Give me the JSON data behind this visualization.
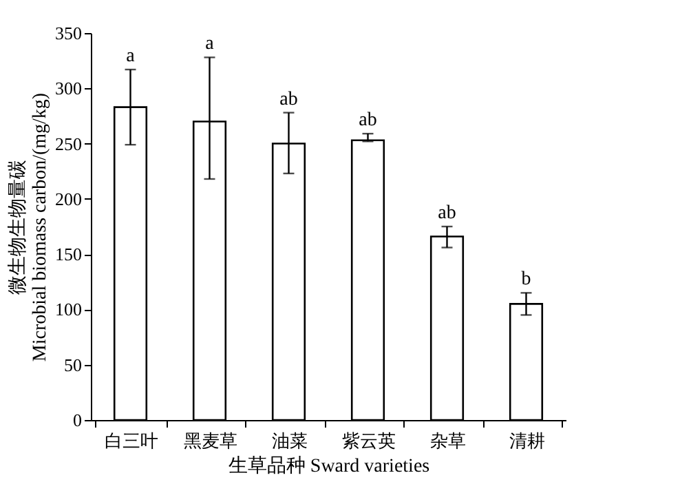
{
  "chart_data": {
    "type": "bar",
    "categories": [
      "白三叶",
      "黑麦草",
      "油菜",
      "紫云英",
      "杂草",
      "清耕"
    ],
    "values": [
      283,
      270,
      250,
      253,
      166,
      105
    ],
    "errors": [
      [
        249,
        317
      ],
      [
        218,
        328
      ],
      [
        223,
        278
      ],
      [
        252,
        259
      ],
      [
        156,
        175
      ],
      [
        95,
        115
      ]
    ],
    "color": "#ffffff",
    "xlabel": "生草品种 Sward varieties",
    "ylabel": "微生物生物量碳\nMicrobial biomass carbon/(mg/kg)",
    "ylim": [
      0,
      350
    ],
    "yticks": [
      0,
      50,
      100,
      150,
      200,
      250,
      300,
      350
    ],
    "annotations": [
      {
        "text": "a",
        "x": "白三叶",
        "y": 317
      },
      {
        "text": "a",
        "x": "黑麦草",
        "y": 328
      },
      {
        "text": "ab",
        "x": "油菜",
        "y": 278
      },
      {
        "text": "ab",
        "x": "紫云英",
        "y": 259
      },
      {
        "text": "ab",
        "x": "杂草",
        "y": 175
      },
      {
        "text": "b",
        "x": "清耕",
        "y": 115
      }
    ],
    "grid": false
  }
}
